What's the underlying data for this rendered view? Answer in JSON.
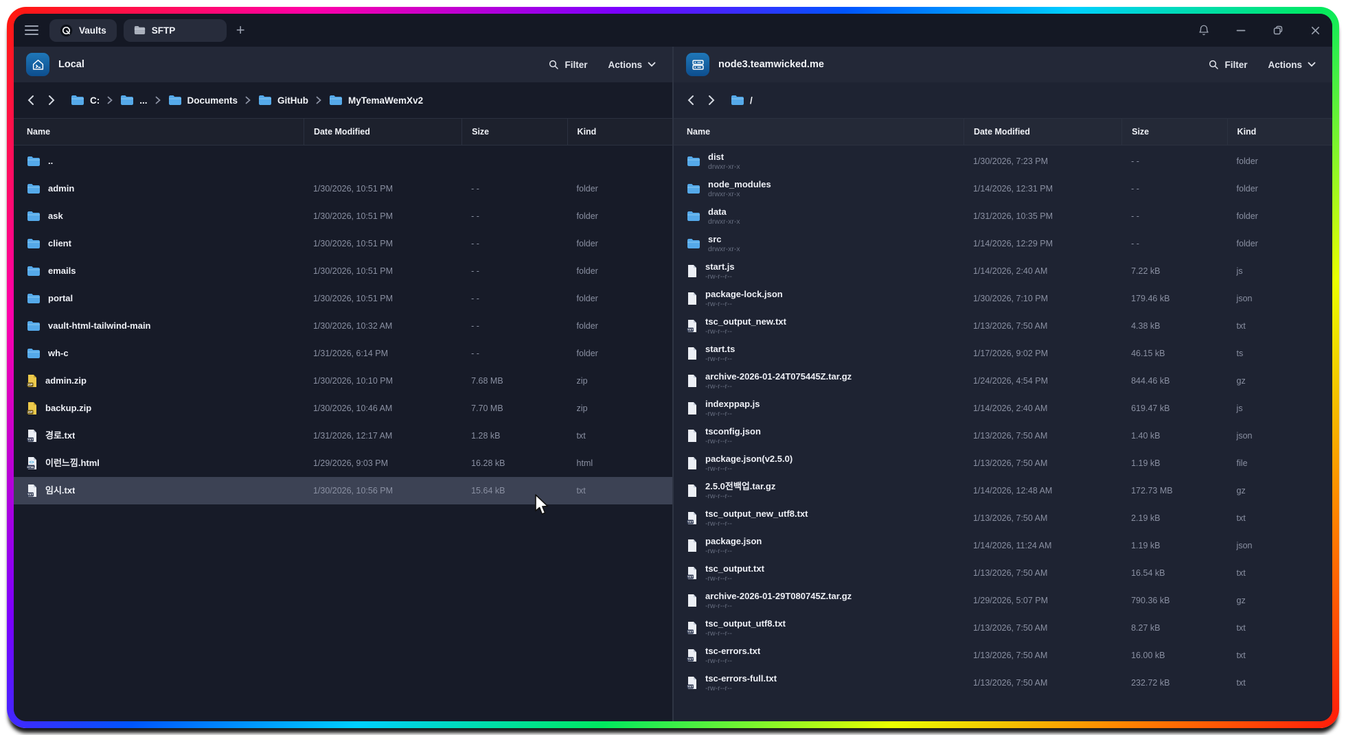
{
  "titlebar": {
    "tabs": [
      {
        "label": "Vaults",
        "icon": "vaults-logo"
      },
      {
        "label": "SFTP",
        "icon": "folder"
      }
    ],
    "new_tab_label": "+",
    "window_control_icons": [
      "bell",
      "minimize",
      "restore",
      "close"
    ]
  },
  "left_pane": {
    "title": "Local",
    "icon": "home-terminal",
    "filter_label": "Filter",
    "actions_label": "Actions",
    "breadcrumbs": [
      "C:",
      "...",
      "Documents",
      "GitHub",
      "MyTemaWemXv2"
    ],
    "columns": [
      "Name",
      "Date Modified",
      "Size",
      "Kind"
    ],
    "rows": [
      {
        "name": "..",
        "icon": "folder",
        "date": "",
        "size": "",
        "kind": "",
        "selected": false
      },
      {
        "name": "admin",
        "icon": "folder",
        "date": "1/30/2026, 10:51 PM",
        "size": "- -",
        "kind": "folder",
        "selected": false
      },
      {
        "name": "ask",
        "icon": "folder",
        "date": "1/30/2026, 10:51 PM",
        "size": "- -",
        "kind": "folder",
        "selected": false
      },
      {
        "name": "client",
        "icon": "folder",
        "date": "1/30/2026, 10:51 PM",
        "size": "- -",
        "kind": "folder",
        "selected": false
      },
      {
        "name": "emails",
        "icon": "folder",
        "date": "1/30/2026, 10:51 PM",
        "size": "- -",
        "kind": "folder",
        "selected": false
      },
      {
        "name": "portal",
        "icon": "folder",
        "date": "1/30/2026, 10:51 PM",
        "size": "- -",
        "kind": "folder",
        "selected": false
      },
      {
        "name": "vault-html-tailwind-main",
        "icon": "folder",
        "date": "1/30/2026, 10:32 AM",
        "size": "- -",
        "kind": "folder",
        "selected": false
      },
      {
        "name": "wh-c",
        "icon": "folder",
        "date": "1/31/2026, 6:14 PM",
        "size": "- -",
        "kind": "folder",
        "selected": false
      },
      {
        "name": "admin.zip",
        "icon": "zip",
        "date": "1/30/2026, 10:10 PM",
        "size": "7.68 MB",
        "kind": "zip",
        "selected": false
      },
      {
        "name": "backup.zip",
        "icon": "zip",
        "date": "1/30/2026, 10:46 AM",
        "size": "7.70 MB",
        "kind": "zip",
        "selected": false
      },
      {
        "name": "경로.txt",
        "icon": "txt",
        "date": "1/31/2026, 12:17 AM",
        "size": "1.28 kB",
        "kind": "txt",
        "selected": false
      },
      {
        "name": "이런느낌.html",
        "icon": "html",
        "date": "1/29/2026, 9:03 PM",
        "size": "16.28 kB",
        "kind": "html",
        "selected": false
      },
      {
        "name": "임시.txt",
        "icon": "txt",
        "date": "1/30/2026, 10:56 PM",
        "size": "15.64 kB",
        "kind": "txt",
        "selected": true
      }
    ]
  },
  "right_pane": {
    "title": "node3.teamwicked.me",
    "icon": "server",
    "filter_label": "Filter",
    "actions_label": "Actions",
    "breadcrumbs": [
      "/"
    ],
    "columns": [
      "Name",
      "Date Modified",
      "Size",
      "Kind"
    ],
    "rows": [
      {
        "name": "dist",
        "perm": "drwxr-xr-x",
        "icon": "folder",
        "date": "1/30/2026, 7:23 PM",
        "size": "- -",
        "kind": "folder",
        "selected": false
      },
      {
        "name": "node_modules",
        "perm": "drwxr-xr-x",
        "icon": "folder",
        "date": "1/14/2026, 12:31 PM",
        "size": "- -",
        "kind": "folder",
        "selected": false
      },
      {
        "name": "data",
        "perm": "drwxr-xr-x",
        "icon": "folder",
        "date": "1/31/2026, 10:35 PM",
        "size": "- -",
        "kind": "folder",
        "selected": false
      },
      {
        "name": "src",
        "perm": "drwxr-xr-x",
        "icon": "folder",
        "date": "1/14/2026, 12:29 PM",
        "size": "- -",
        "kind": "folder",
        "selected": false
      },
      {
        "name": "start.js",
        "perm": "-rw-r--r--",
        "icon": "file",
        "date": "1/14/2026, 2:40 AM",
        "size": "7.22 kB",
        "kind": "js",
        "selected": false
      },
      {
        "name": "package-lock.json",
        "perm": "-rw-r--r--",
        "icon": "file",
        "date": "1/30/2026, 7:10 PM",
        "size": "179.46 kB",
        "kind": "json",
        "selected": false
      },
      {
        "name": "tsc_output_new.txt",
        "perm": "-rw-r--r--",
        "icon": "txt",
        "date": "1/13/2026, 7:50 AM",
        "size": "4.38 kB",
        "kind": "txt",
        "selected": false
      },
      {
        "name": "start.ts",
        "perm": "-rw-r--r--",
        "icon": "file",
        "date": "1/17/2026, 9:02 PM",
        "size": "46.15 kB",
        "kind": "ts",
        "selected": false
      },
      {
        "name": "archive-2026-01-24T075445Z.tar.gz",
        "perm": "-rw-r--r--",
        "icon": "file",
        "date": "1/24/2026, 4:54 PM",
        "size": "844.46 kB",
        "kind": "gz",
        "selected": false
      },
      {
        "name": "indexppap.js",
        "perm": "-rw-r--r--",
        "icon": "file",
        "date": "1/14/2026, 2:40 AM",
        "size": "619.47 kB",
        "kind": "js",
        "selected": false
      },
      {
        "name": "tsconfig.json",
        "perm": "-rw-r--r--",
        "icon": "file",
        "date": "1/13/2026, 7:50 AM",
        "size": "1.40 kB",
        "kind": "json",
        "selected": false
      },
      {
        "name": "package.json(v2.5.0)",
        "perm": "-rw-r--r--",
        "icon": "file",
        "date": "1/13/2026, 7:50 AM",
        "size": "1.19 kB",
        "kind": "file",
        "selected": false
      },
      {
        "name": "2.5.0전백업.tar.gz",
        "perm": "-rw-r--r--",
        "icon": "file",
        "date": "1/14/2026, 12:48 AM",
        "size": "172.73 MB",
        "kind": "gz",
        "selected": false
      },
      {
        "name": "tsc_output_new_utf8.txt",
        "perm": "-rw-r--r--",
        "icon": "txt",
        "date": "1/13/2026, 7:50 AM",
        "size": "2.19 kB",
        "kind": "txt",
        "selected": false
      },
      {
        "name": "package.json",
        "perm": "-rw-r--r--",
        "icon": "file",
        "date": "1/14/2026, 11:24 AM",
        "size": "1.19 kB",
        "kind": "json",
        "selected": false
      },
      {
        "name": "tsc_output.txt",
        "perm": "-rw-r--r--",
        "icon": "txt",
        "date": "1/13/2026, 7:50 AM",
        "size": "16.54 kB",
        "kind": "txt",
        "selected": false
      },
      {
        "name": "archive-2026-01-29T080745Z.tar.gz",
        "perm": "-rw-r--r--",
        "icon": "file",
        "date": "1/29/2026, 5:07 PM",
        "size": "790.36 kB",
        "kind": "gz",
        "selected": false
      },
      {
        "name": "tsc_output_utf8.txt",
        "perm": "-rw-r--r--",
        "icon": "txt",
        "date": "1/13/2026, 7:50 AM",
        "size": "8.27 kB",
        "kind": "txt",
        "selected": false
      },
      {
        "name": "tsc-errors.txt",
        "perm": "-rw-r--r--",
        "icon": "txt",
        "date": "1/13/2026, 7:50 AM",
        "size": "16.00 kB",
        "kind": "txt",
        "selected": false
      },
      {
        "name": "tsc-errors-full.txt",
        "perm": "-rw-r--r--",
        "icon": "txt",
        "date": "1/13/2026, 7:50 AM",
        "size": "232.72 kB",
        "kind": "txt",
        "selected": false
      }
    ]
  },
  "colors": {
    "folder_blue": "#55a9e9",
    "badge_blue_top": "#1f77b8",
    "badge_blue_bottom": "#0d4e8e",
    "selection": "#3c4254",
    "zip_yellow": "#ecc94b",
    "pane_left_bg": "#171b28",
    "pane_right_bg": "#1e2332",
    "titlebar_bg": "#141824"
  }
}
